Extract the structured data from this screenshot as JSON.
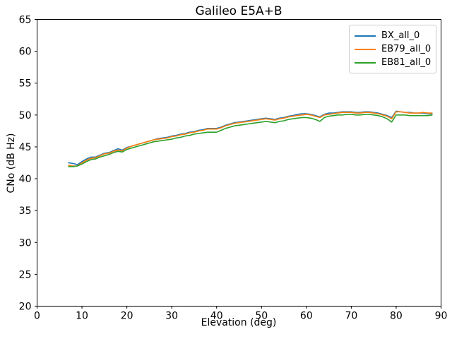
{
  "chart_data": {
    "type": "line",
    "title": "Galileo E5A+B",
    "xlabel": "Elevation (deg)",
    "ylabel": "CNo (dB Hz)",
    "xlim": [
      0,
      90
    ],
    "ylim": [
      20,
      65
    ],
    "xticks": [
      0,
      10,
      20,
      30,
      40,
      50,
      60,
      70,
      80,
      90
    ],
    "yticks": [
      20,
      25,
      30,
      35,
      40,
      45,
      50,
      55,
      60,
      65
    ],
    "grid": false,
    "legend_position": "upper right",
    "x": [
      7,
      8,
      9,
      10,
      11,
      12,
      13,
      14,
      15,
      16,
      17,
      18,
      19,
      20,
      21,
      22,
      23,
      24,
      25,
      26,
      27,
      28,
      29,
      30,
      31,
      32,
      33,
      34,
      35,
      36,
      37,
      38,
      39,
      40,
      41,
      42,
      43,
      44,
      45,
      46,
      47,
      48,
      49,
      50,
      51,
      52,
      53,
      54,
      55,
      56,
      57,
      58,
      59,
      60,
      61,
      62,
      63,
      64,
      65,
      66,
      67,
      68,
      69,
      70,
      71,
      72,
      73,
      74,
      75,
      76,
      77,
      78,
      79,
      80,
      81,
      82,
      83,
      84,
      85,
      86,
      87,
      88
    ],
    "series": [
      {
        "name": "BX_all_0",
        "color": "#1f77b4",
        "values": [
          42.5,
          42.4,
          42.2,
          42.7,
          43.1,
          43.4,
          43.4,
          43.7,
          44.0,
          44.1,
          44.4,
          44.7,
          44.5,
          44.9,
          45.1,
          45.3,
          45.5,
          45.7,
          45.9,
          46.1,
          46.3,
          46.4,
          46.5,
          46.7,
          46.8,
          47.0,
          47.1,
          47.3,
          47.4,
          47.6,
          47.7,
          47.9,
          47.9,
          47.9,
          48.1,
          48.4,
          48.6,
          48.8,
          48.9,
          49.0,
          49.1,
          49.2,
          49.3,
          49.4,
          49.5,
          49.4,
          49.3,
          49.5,
          49.6,
          49.8,
          49.9,
          50.1,
          50.2,
          50.2,
          50.1,
          49.9,
          49.7,
          50.1,
          50.3,
          50.3,
          50.4,
          50.5,
          50.5,
          50.5,
          50.4,
          50.4,
          50.5,
          50.5,
          50.4,
          50.3,
          50.1,
          49.9,
          49.6,
          50.6,
          50.5,
          50.4,
          50.4,
          50.3,
          50.3,
          50.3,
          50.2,
          50.2
        ]
      },
      {
        "name": "EB79_all_0",
        "color": "#ff7f0e",
        "values": [
          42.1,
          42.0,
          42.0,
          42.5,
          42.9,
          43.2,
          43.3,
          43.6,
          43.9,
          44.0,
          44.3,
          44.5,
          44.4,
          44.8,
          45.1,
          45.3,
          45.5,
          45.7,
          45.9,
          46.1,
          46.2,
          46.3,
          46.4,
          46.6,
          46.7,
          46.9,
          47.0,
          47.2,
          47.3,
          47.5,
          47.6,
          47.8,
          47.8,
          47.8,
          48.0,
          48.3,
          48.5,
          48.7,
          48.8,
          48.9,
          49.0,
          49.1,
          49.2,
          49.3,
          49.4,
          49.3,
          49.2,
          49.4,
          49.5,
          49.7,
          49.8,
          49.9,
          50.0,
          50.1,
          50.0,
          49.8,
          49.6,
          50.0,
          50.1,
          50.2,
          50.3,
          50.4,
          50.4,
          50.4,
          50.3,
          50.3,
          50.4,
          50.4,
          50.3,
          50.2,
          50.0,
          49.8,
          49.4,
          50.5,
          50.5,
          50.4,
          50.3,
          50.3,
          50.3,
          50.4,
          50.3,
          50.3
        ]
      },
      {
        "name": "EB81_all_0",
        "color": "#2ca02c",
        "values": [
          41.9,
          41.9,
          42.0,
          42.3,
          42.7,
          43.0,
          43.1,
          43.4,
          43.6,
          43.8,
          44.1,
          44.3,
          44.2,
          44.6,
          44.8,
          45.0,
          45.2,
          45.4,
          45.6,
          45.8,
          45.9,
          46.0,
          46.1,
          46.2,
          46.4,
          46.5,
          46.7,
          46.8,
          47.0,
          47.1,
          47.2,
          47.3,
          47.3,
          47.3,
          47.6,
          47.9,
          48.1,
          48.3,
          48.4,
          48.5,
          48.6,
          48.7,
          48.8,
          48.9,
          49.0,
          48.9,
          48.8,
          49.0,
          49.1,
          49.3,
          49.4,
          49.5,
          49.6,
          49.6,
          49.5,
          49.3,
          49.0,
          49.6,
          49.8,
          49.9,
          50.0,
          50.0,
          50.1,
          50.1,
          50.0,
          50.0,
          50.1,
          50.1,
          50.0,
          49.9,
          49.7,
          49.4,
          48.9,
          50.0,
          50.0,
          50.0,
          49.9,
          49.9,
          49.9,
          49.9,
          49.9,
          50.0
        ]
      }
    ]
  }
}
